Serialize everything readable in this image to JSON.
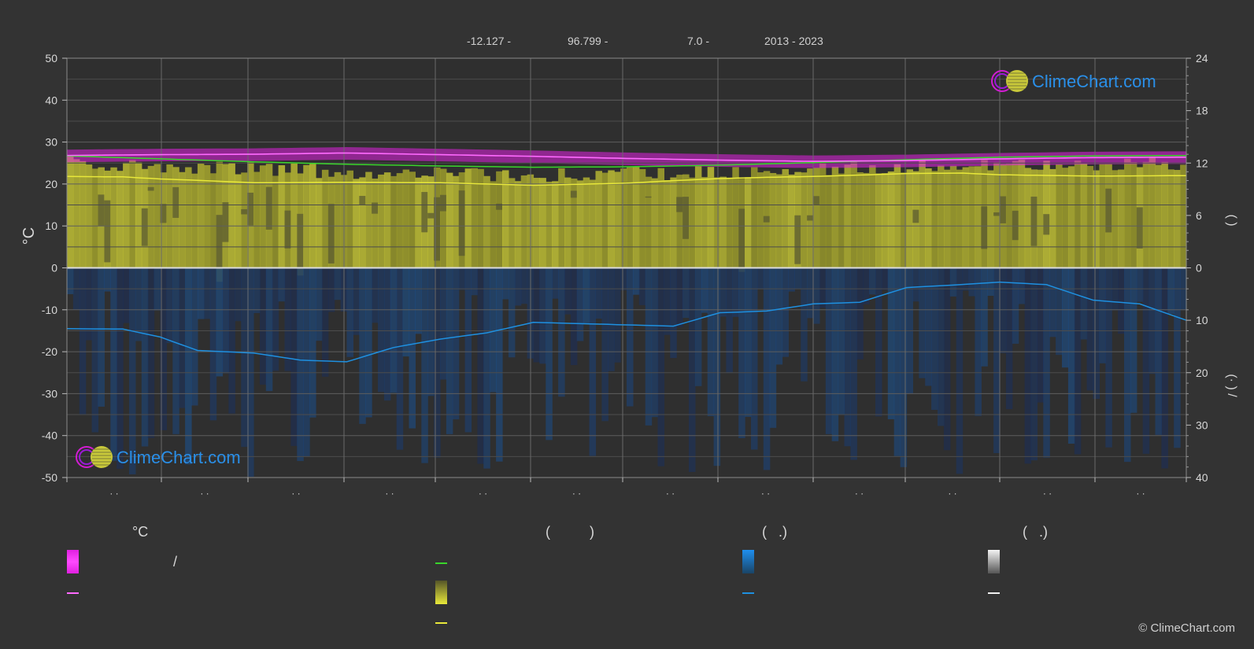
{
  "header": {
    "lat": "-12.127 -",
    "lon": "96.799 -",
    "elev": "7.0 -",
    "years": "2013 - 2023"
  },
  "logo_text": "ClimeChart.com",
  "copyright": "© ClimeChart.com",
  "legend": {
    "col1_title": "°C",
    "col1_slash": "/",
    "col2_title": "(          )",
    "col3_title": "(   .)",
    "col4_title": "(   .)"
  },
  "colors": {
    "background": "#333333",
    "sunshine_fill": "#bdbd2e",
    "daylight_line": "#39d62b",
    "sunshine_line": "#e8e83a",
    "temp_band": "#e020e0",
    "temp_line": "#ff6aff",
    "precip_fill": "#1a5a8c",
    "precip_line": "#1e90e0",
    "grid": "#5e5e5e"
  },
  "chart_data": {
    "type": "line",
    "left_axis": {
      "label": "°C",
      "ylim": [
        -50,
        50
      ],
      "ticks": [
        50,
        40,
        30,
        20,
        10,
        0,
        -10,
        -20,
        -30,
        -40,
        -50
      ]
    },
    "right_axis_top": {
      "ylim": [
        0,
        24
      ],
      "ticks": [
        24,
        18,
        12,
        6,
        0
      ],
      "label": "(   )"
    },
    "right_axis_bottom": {
      "ylim": [
        0,
        40
      ],
      "ticks": [
        0,
        10,
        20,
        30,
        40
      ],
      "label": "(·   )   /"
    },
    "months": 12,
    "month_tick_labels": [
      "· ·",
      "· ·",
      "· ·",
      "· ·",
      "· ·",
      "· ·",
      "· ·",
      "· ·",
      "· ·",
      "· ·",
      "· ·",
      "· ·"
    ],
    "series": [
      {
        "key": "temperature",
        "points": [
          [
            0,
            26.8
          ],
          [
            1,
            27.0
          ],
          [
            2,
            27.1
          ],
          [
            3,
            27.4
          ],
          [
            4,
            27.0
          ],
          [
            5,
            26.6
          ],
          [
            6,
            26.1
          ],
          [
            7,
            25.7
          ],
          [
            8,
            25.4
          ],
          [
            9,
            25.6
          ],
          [
            10,
            26.0
          ],
          [
            11,
            26.3
          ],
          [
            12,
            26.4
          ]
        ]
      },
      {
        "key": "daylight",
        "points": [
          [
            0,
            26.7
          ],
          [
            1,
            26.0
          ],
          [
            2,
            25.3
          ],
          [
            3,
            24.7
          ],
          [
            4,
            24.3
          ],
          [
            5,
            24.0
          ],
          [
            6,
            24.1
          ],
          [
            7,
            24.5
          ],
          [
            8,
            25.1
          ],
          [
            9,
            25.8
          ],
          [
            10,
            26.4
          ],
          [
            11,
            26.7
          ],
          [
            12,
            26.8
          ]
        ]
      },
      {
        "key": "sunshine",
        "points": [
          [
            0,
            21.8
          ],
          [
            0.6,
            21.7
          ],
          [
            1,
            21.2
          ],
          [
            1.6,
            20.7
          ],
          [
            2,
            20.3
          ],
          [
            3,
            20.4
          ],
          [
            4,
            20.3
          ],
          [
            5,
            19.7
          ],
          [
            6,
            20.2
          ],
          [
            6.5,
            20.8
          ],
          [
            7,
            21.3
          ],
          [
            7.5,
            21.6
          ],
          [
            8,
            21.8
          ],
          [
            8.6,
            22.2
          ],
          [
            9,
            22.5
          ],
          [
            9.6,
            22.6
          ],
          [
            10,
            22.2
          ],
          [
            11,
            21.9
          ],
          [
            12,
            22.0
          ]
        ]
      },
      {
        "key": "precipitation",
        "points": [
          [
            0,
            -14.5
          ],
          [
            0.6,
            -14.6
          ],
          [
            1,
            -16.5
          ],
          [
            1.4,
            -19.7
          ],
          [
            2,
            -20.3
          ],
          [
            2.5,
            -22.0
          ],
          [
            3,
            -22.4
          ],
          [
            3.5,
            -19.0
          ],
          [
            4,
            -17.0
          ],
          [
            4.5,
            -15.5
          ],
          [
            5,
            -13.0
          ],
          [
            5.5,
            -13.3
          ],
          [
            6,
            -13.6
          ],
          [
            6.5,
            -13.9
          ],
          [
            7,
            -10.7
          ],
          [
            7.5,
            -10.3
          ],
          [
            8,
            -8.6
          ],
          [
            8.5,
            -8.2
          ],
          [
            9,
            -4.7
          ],
          [
            9.5,
            -4.1
          ],
          [
            10,
            -3.4
          ],
          [
            10.5,
            -4.0
          ],
          [
            11,
            -7.7
          ],
          [
            11.5,
            -8.6
          ],
          [
            12,
            -12.5
          ],
          [
            12.5,
            -12.8
          ]
        ]
      }
    ]
  }
}
